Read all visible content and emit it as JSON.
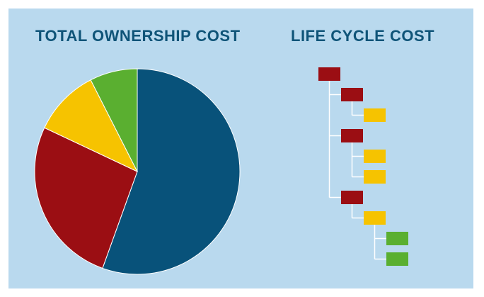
{
  "left_title": "TOTAL OWNERSHIP COST",
  "right_title": "LIFE CYCLE COST",
  "colors": {
    "background": "#b9d9ee",
    "title": "#0f5478",
    "blue": "#08527a",
    "red": "#9b0e13",
    "yellow": "#f6c300",
    "green": "#5aaf30",
    "line": "#ffffff"
  },
  "pie_slices": [
    {
      "color": "blue",
      "share": 0.555
    },
    {
      "color": "red",
      "share": 0.265
    },
    {
      "color": "yellow",
      "share": 0.105
    },
    {
      "color": "green",
      "share": 0.075
    }
  ],
  "tree": {
    "color": "red",
    "children": [
      {
        "color": "red",
        "children": [
          {
            "color": "yellow"
          }
        ]
      },
      {
        "color": "red",
        "children": [
          {
            "color": "yellow"
          },
          {
            "color": "yellow"
          }
        ]
      },
      {
        "color": "red",
        "children": [
          {
            "color": "yellow",
            "children": [
              {
                "color": "green"
              },
              {
                "color": "green"
              }
            ]
          }
        ]
      }
    ]
  }
}
